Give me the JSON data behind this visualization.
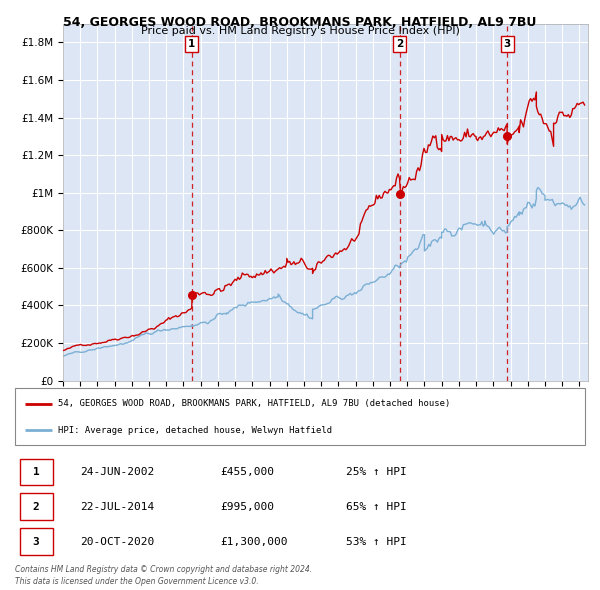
{
  "title": "54, GEORGES WOOD ROAD, BROOKMANS PARK, HATFIELD, AL9 7BU",
  "subtitle": "Price paid vs. HM Land Registry's House Price Index (HPI)",
  "bg_color": "#dce6f5",
  "red_line_color": "#cc0000",
  "blue_line_color": "#7bafd4",
  "grid_color": "#ffffff",
  "ylim": [
    0,
    1900000
  ],
  "yticks": [
    0,
    200000,
    400000,
    600000,
    800000,
    1000000,
    1200000,
    1400000,
    1600000,
    1800000
  ],
  "ytick_labels": [
    "£0",
    "£200K",
    "£400K",
    "£600K",
    "£800K",
    "£1M",
    "£1.2M",
    "£1.4M",
    "£1.6M",
    "£1.8M"
  ],
  "xlim_start": 1995.0,
  "xlim_end": 2025.5,
  "sale_dates": [
    2002.48,
    2014.55,
    2020.8
  ],
  "sale_prices": [
    455000,
    995000,
    1300000
  ],
  "sale_labels": [
    "1",
    "2",
    "3"
  ],
  "legend_line1": "54, GEORGES WOOD ROAD, BROOKMANS PARK, HATFIELD, AL9 7BU (detached house)",
  "legend_line2": "HPI: Average price, detached house, Welwyn Hatfield",
  "table_rows": [
    [
      "1",
      "24-JUN-2002",
      "£455,000",
      "25% ↑ HPI"
    ],
    [
      "2",
      "22-JUL-2014",
      "£995,000",
      "65% ↑ HPI"
    ],
    [
      "3",
      "20-OCT-2020",
      "£1,300,000",
      "53% ↑ HPI"
    ]
  ],
  "footer_line1": "Contains HM Land Registry data © Crown copyright and database right 2024.",
  "footer_line2": "This data is licensed under the Open Government Licence v3.0."
}
